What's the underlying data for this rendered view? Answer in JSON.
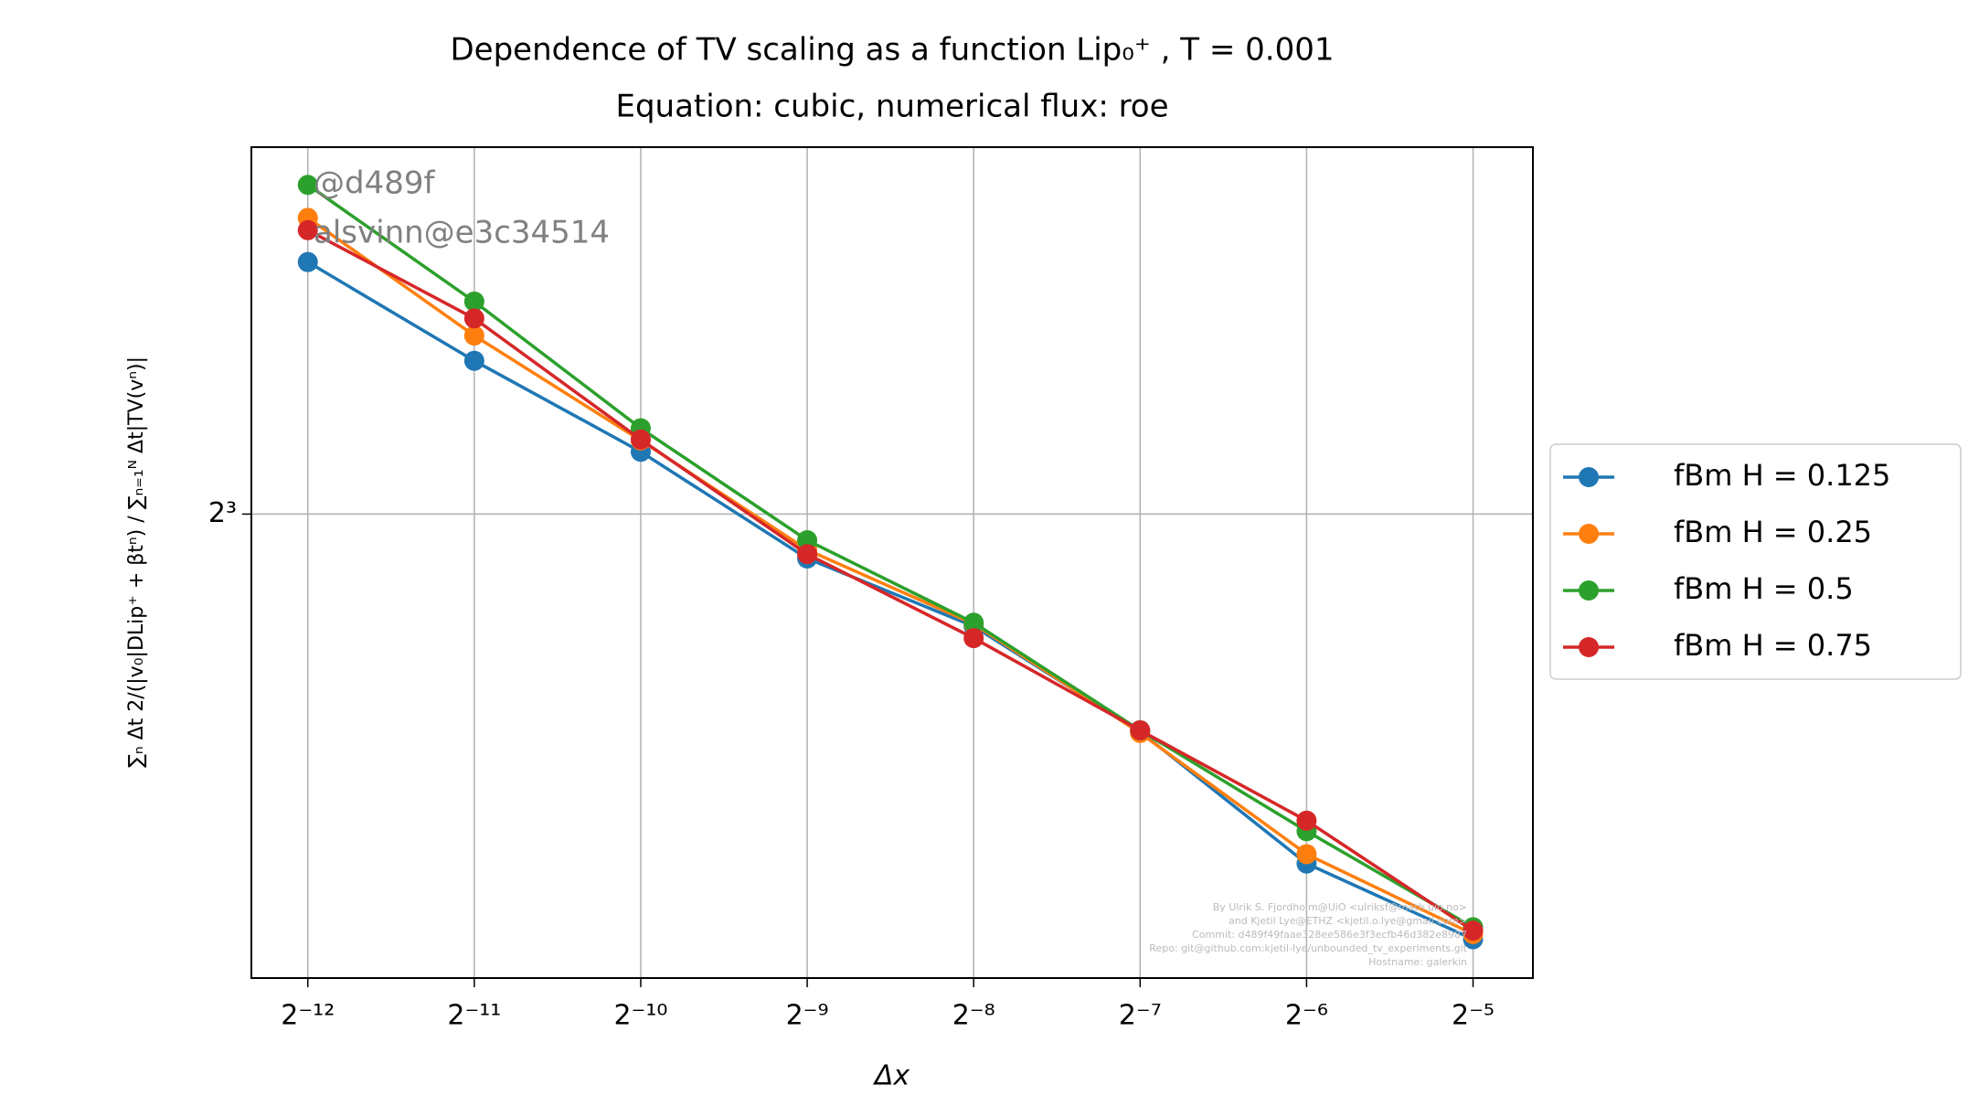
{
  "chart_data": {
    "type": "line",
    "title": "Dependence of TV scaling as a function Lip₀⁺ , T = 0.001",
    "subtitle": "Equation: cubic, numerical flux: roe",
    "x_label": "Δx",
    "y_label": "∑ₙ Δt 2/(|v₀|DLip⁺ + βtⁿ) / ∑ₙ₌₁ᴺ Δt|TV(vⁿ)|",
    "annotations": [
      "@d489f",
      "alsvinn@e3c34514"
    ],
    "footer": [
      "By Ulrik S. Fjordholm@UiO <ulriksf@math.uio.no>",
      "and Kjetil Lye@ETHZ <kjetil.o.lye@gmail.com>",
      "Commit: d489f49faae328ee586e3f3ecfb46d382e8987",
      "Repo: git@github.com:kjetil-lye/unbounded_tv_experiments.git",
      "Hostname: galerkin"
    ],
    "x": [
      0.000244140625,
      0.00048828125,
      0.0009765625,
      0.001953125,
      0.00390625,
      0.0078125,
      0.015625,
      0.03125
    ],
    "series": [
      {
        "name": "fBm H = 0.125",
        "color": "#1f77b4",
        "values": [
          10.87,
          9.64,
          8.63,
          7.58,
          6.98,
          6.14,
          5.23,
          4.77
        ]
      },
      {
        "name": "fBm H = 0.25",
        "color": "#ff7f0e",
        "values": [
          11.47,
          9.94,
          8.75,
          7.66,
          7.0,
          6.13,
          5.29,
          4.8
        ]
      },
      {
        "name": "fBm H = 0.5",
        "color": "#2ca02c",
        "values": [
          11.94,
          10.36,
          8.88,
          7.75,
          7.01,
          6.15,
          5.44,
          4.84
        ]
      },
      {
        "name": "fBm H = 0.75",
        "color": "#d62728",
        "values": [
          11.3,
          10.15,
          8.76,
          7.62,
          6.88,
          6.15,
          5.51,
          4.82
        ]
      }
    ],
    "xscale": "log2",
    "yscale": "log2",
    "xlim": [
      0.000193,
      0.0401
    ],
    "ylim": [
      4.55,
      12.5
    ],
    "xticks": [
      {
        "value": 0.000244140625,
        "label": "2⁻¹²"
      },
      {
        "value": 0.00048828125,
        "label": "2⁻¹¹"
      },
      {
        "value": 0.0009765625,
        "label": "2⁻¹⁰"
      },
      {
        "value": 0.001953125,
        "label": "2⁻⁹"
      },
      {
        "value": 0.00390625,
        "label": "2⁻⁸"
      },
      {
        "value": 0.0078125,
        "label": "2⁻⁷"
      },
      {
        "value": 0.015625,
        "label": "2⁻⁶"
      },
      {
        "value": 0.03125,
        "label": "2⁻⁵"
      }
    ],
    "yticks": [
      {
        "value": 8,
        "label": "2³"
      }
    ],
    "grid": true,
    "legend": "outside-right"
  }
}
